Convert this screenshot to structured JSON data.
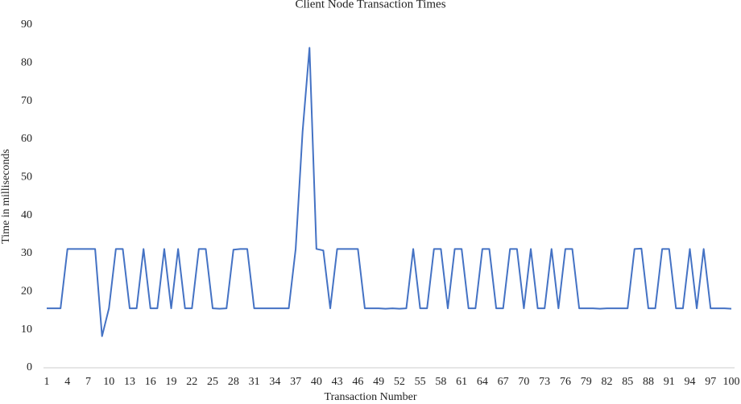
{
  "chart_data": {
    "type": "line",
    "title": "Client Node Transaction Times",
    "x_label": "Transaction Number",
    "y_label": "Time in milliseconds",
    "categories": [
      "1",
      null,
      null,
      "4",
      null,
      null,
      "7",
      null,
      null,
      "10",
      null,
      null,
      "13",
      null,
      null,
      "16",
      null,
      null,
      "19",
      null,
      null,
      "22",
      null,
      null,
      "25",
      null,
      null,
      "28",
      null,
      null,
      "31",
      null,
      null,
      "34",
      null,
      null,
      "37",
      null,
      null,
      "40",
      null,
      null,
      "43",
      null,
      null,
      "46",
      null,
      null,
      "49",
      null,
      null,
      "52",
      null,
      null,
      "55",
      null,
      null,
      "58",
      null,
      null,
      "61",
      null,
      null,
      "64",
      null,
      null,
      "67",
      null,
      null,
      "70",
      null,
      null,
      "73",
      null,
      null,
      "76",
      null,
      null,
      "79",
      null,
      null,
      "82",
      null,
      null,
      "85",
      null,
      null,
      "88",
      null,
      null,
      "91",
      null,
      null,
      "94",
      null,
      null,
      "97",
      null,
      null,
      "100"
    ],
    "values": [
      15.6,
      15.6,
      15.6,
      31.2,
      31.2,
      31.2,
      31.2,
      31.2,
      8.3,
      15.6,
      31.2,
      31.2,
      15.6,
      15.6,
      31.2,
      15.6,
      15.6,
      31.2,
      15.6,
      31.2,
      15.6,
      15.6,
      31.2,
      31.2,
      15.6,
      15.5,
      15.6,
      31.0,
      31.2,
      31.2,
      15.6,
      15.6,
      15.6,
      15.6,
      15.6,
      15.6,
      31.2,
      62,
      84,
      31.2,
      30.8,
      15.6,
      31.2,
      31.2,
      31.2,
      31.2,
      15.6,
      15.6,
      15.6,
      15.5,
      15.6,
      15.5,
      15.6,
      31.2,
      15.6,
      15.6,
      31.2,
      31.2,
      15.6,
      31.2,
      31.2,
      15.6,
      15.6,
      31.2,
      31.2,
      15.6,
      15.6,
      31.2,
      31.2,
      15.6,
      31.2,
      15.6,
      15.6,
      31.2,
      15.6,
      31.2,
      31.2,
      15.6,
      15.6,
      15.6,
      15.5,
      15.6,
      15.6,
      15.6,
      15.6,
      31.2,
      31.3,
      15.6,
      15.6,
      31.2,
      31.2,
      15.6,
      15.6,
      31.2,
      15.6,
      31.2,
      15.6,
      15.6,
      15.6,
      15.5
    ],
    "color": "#4472c4",
    "ylim": [
      0,
      90
    ],
    "yticks": [
      0,
      10,
      20,
      30,
      40,
      50,
      60,
      70,
      80,
      90
    ],
    "grid": false
  }
}
